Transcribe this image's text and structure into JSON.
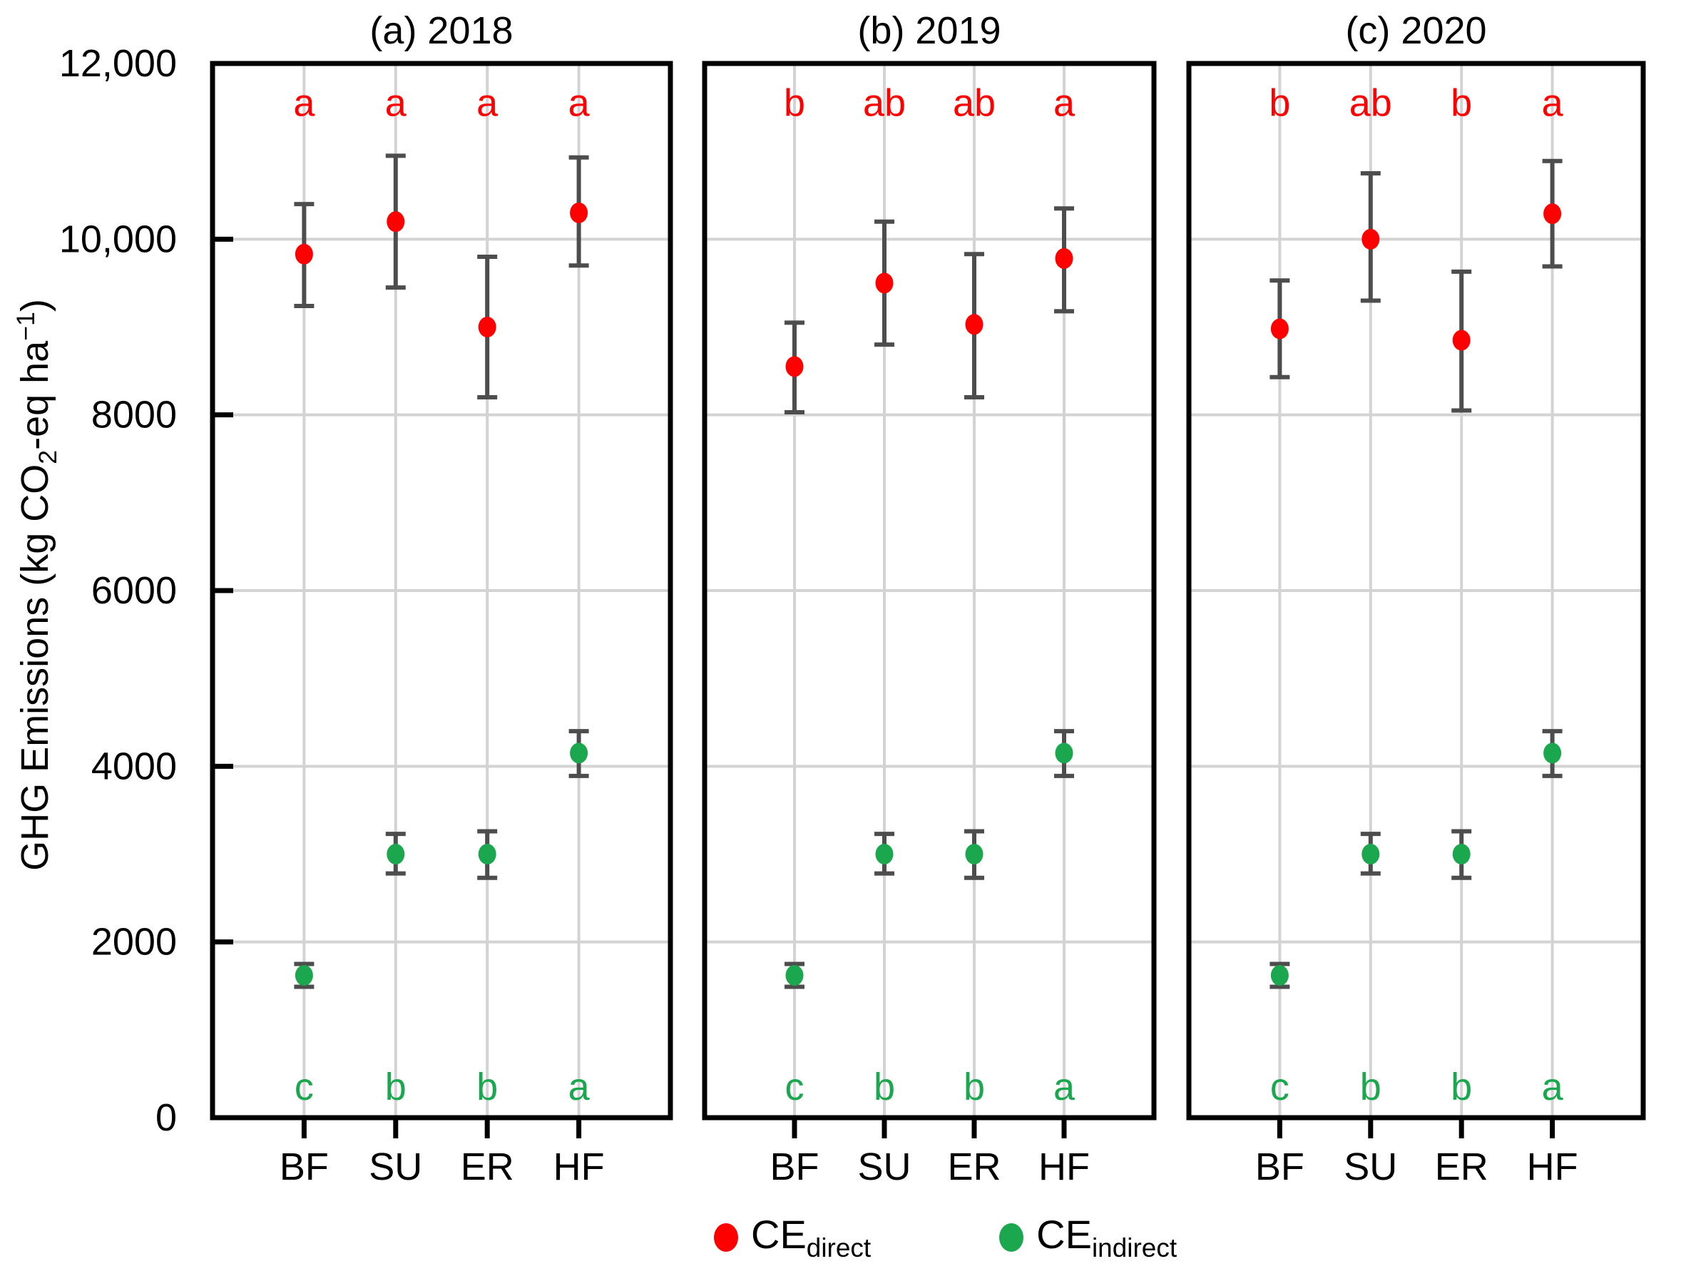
{
  "figure": {
    "y_axis_label": {
      "pre": "GHG Emissions (kg CO",
      "sub": "2",
      "mid": "-eq ha",
      "sup": "−1",
      "post": ")"
    },
    "legend": [
      {
        "name": "CE_direct",
        "main": "CE",
        "sub": "direct",
        "color": "#FF0000"
      },
      {
        "name": "CE_indirect",
        "main": "CE",
        "sub": "indirect",
        "color": "#1AA74D"
      }
    ]
  },
  "chart_data": {
    "type": "scatter",
    "title": "",
    "xlabel": "",
    "ylabel": "GHG Emissions (kg CO2-eq ha-1)",
    "ylim": [
      0,
      12000
    ],
    "grid": true,
    "legend_position": "bottom",
    "categories": [
      "BF",
      "SU",
      "ER",
      "HF"
    ],
    "y_ticks": {
      "values": [
        0,
        2000,
        4000,
        6000,
        8000,
        10000,
        12000
      ],
      "labels": [
        "0",
        "2000",
        "4000",
        "6000",
        "8000",
        "10,000",
        "12,000"
      ]
    },
    "colors": {
      "direct": "#FF0000",
      "indirect": "#1AA74D",
      "error_bar": "#4D4D4D",
      "gridline": "#D3D3D3",
      "frame": "#000000"
    },
    "panels": [
      {
        "id": "a",
        "title": "(a) 2018",
        "series": [
          {
            "name": "CE_direct",
            "color": "#FF0000",
            "letters_y": 11550,
            "points": [
              {
                "category": "BF",
                "value": 9830,
                "err_low": 9240,
                "err_high": 10400,
                "letter": "a"
              },
              {
                "category": "SU",
                "value": 10200,
                "err_low": 9450,
                "err_high": 10950,
                "letter": "a"
              },
              {
                "category": "ER",
                "value": 9000,
                "err_low": 8200,
                "err_high": 9800,
                "letter": "a"
              },
              {
                "category": "HF",
                "value": 10300,
                "err_low": 9700,
                "err_high": 10930,
                "letter": "a"
              }
            ]
          },
          {
            "name": "CE_indirect",
            "color": "#1AA74D",
            "letters_y": 350,
            "points": [
              {
                "category": "BF",
                "value": 1620,
                "err_low": 1490,
                "err_high": 1750,
                "letter": "c"
              },
              {
                "category": "SU",
                "value": 3000,
                "err_low": 2780,
                "err_high": 3230,
                "letter": "b"
              },
              {
                "category": "ER",
                "value": 3000,
                "err_low": 2730,
                "err_high": 3260,
                "letter": "b"
              },
              {
                "category": "HF",
                "value": 4150,
                "err_low": 3890,
                "err_high": 4400,
                "letter": "a"
              }
            ]
          }
        ]
      },
      {
        "id": "b",
        "title": "(b) 2019",
        "series": [
          {
            "name": "CE_direct",
            "color": "#FF0000",
            "letters_y": 11550,
            "points": [
              {
                "category": "BF",
                "value": 8550,
                "err_low": 8030,
                "err_high": 9050,
                "letter": "b"
              },
              {
                "category": "SU",
                "value": 9500,
                "err_low": 8800,
                "err_high": 10200,
                "letter": "ab"
              },
              {
                "category": "ER",
                "value": 9030,
                "err_low": 8200,
                "err_high": 9830,
                "letter": "ab"
              },
              {
                "category": "HF",
                "value": 9780,
                "err_low": 9180,
                "err_high": 10350,
                "letter": "a"
              }
            ]
          },
          {
            "name": "CE_indirect",
            "color": "#1AA74D",
            "letters_y": 350,
            "points": [
              {
                "category": "BF",
                "value": 1620,
                "err_low": 1490,
                "err_high": 1750,
                "letter": "c"
              },
              {
                "category": "SU",
                "value": 3000,
                "err_low": 2780,
                "err_high": 3230,
                "letter": "b"
              },
              {
                "category": "ER",
                "value": 3000,
                "err_low": 2730,
                "err_high": 3260,
                "letter": "b"
              },
              {
                "category": "HF",
                "value": 4150,
                "err_low": 3890,
                "err_high": 4400,
                "letter": "a"
              }
            ]
          }
        ]
      },
      {
        "id": "c",
        "title": "(c) 2020",
        "series": [
          {
            "name": "CE_direct",
            "color": "#FF0000",
            "letters_y": 11550,
            "points": [
              {
                "category": "BF",
                "value": 8980,
                "err_low": 8430,
                "err_high": 9530,
                "letter": "b"
              },
              {
                "category": "SU",
                "value": 10000,
                "err_low": 9300,
                "err_high": 10750,
                "letter": "ab"
              },
              {
                "category": "ER",
                "value": 8850,
                "err_low": 8050,
                "err_high": 9630,
                "letter": "b"
              },
              {
                "category": "HF",
                "value": 10290,
                "err_low": 9690,
                "err_high": 10890,
                "letter": "a"
              }
            ]
          },
          {
            "name": "CE_indirect",
            "color": "#1AA74D",
            "letters_y": 350,
            "points": [
              {
                "category": "BF",
                "value": 1620,
                "err_low": 1490,
                "err_high": 1750,
                "letter": "c"
              },
              {
                "category": "SU",
                "value": 3000,
                "err_low": 2780,
                "err_high": 3230,
                "letter": "b"
              },
              {
                "category": "ER",
                "value": 3000,
                "err_low": 2730,
                "err_high": 3260,
                "letter": "b"
              },
              {
                "category": "HF",
                "value": 4150,
                "err_low": 3890,
                "err_high": 4400,
                "letter": "a"
              }
            ]
          }
        ]
      }
    ]
  }
}
